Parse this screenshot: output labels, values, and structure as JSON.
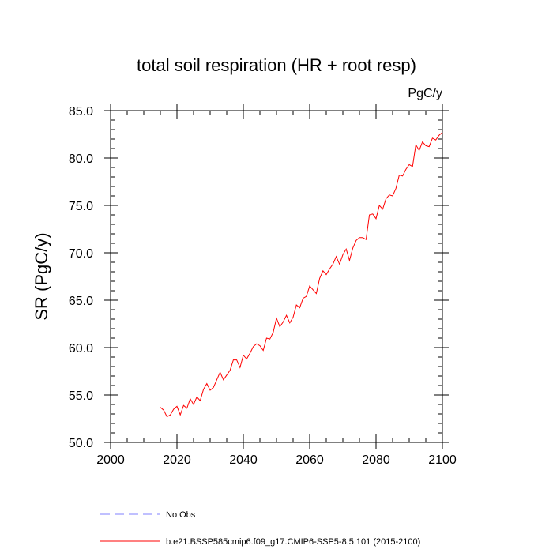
{
  "chart_data": {
    "type": "line",
    "title": "total soil respiration (HR + root resp)",
    "units": "PgC/y",
    "xlabel": "",
    "ylabel": "SR  (PgC/y)",
    "xlim": [
      2000,
      2100
    ],
    "ylim": [
      50,
      85
    ],
    "xticks": [
      2000,
      2020,
      2040,
      2060,
      2080,
      2100
    ],
    "xtick_labels": [
      "2000",
      "2020",
      "2040",
      "2060",
      "2080",
      "2100"
    ],
    "yticks": [
      50,
      55,
      60,
      65,
      70,
      75,
      80,
      85
    ],
    "ytick_labels": [
      "50.0",
      "55.0",
      "60.0",
      "65.0",
      "70.0",
      "75.0",
      "80.0",
      "85.0"
    ],
    "grid": false,
    "legend_position": "bottom",
    "series": [
      {
        "name": "No Obs",
        "color": "#8080ff",
        "style": "dashed",
        "x": [],
        "y": []
      },
      {
        "name": "b.e21.BSSP585cmip6.f09_g17.CMIP6-SSP5-8.5.101 (2015-2100)",
        "color": "#ff0000",
        "style": "solid",
        "x": [
          2015,
          2016,
          2017,
          2018,
          2019,
          2020,
          2021,
          2022,
          2023,
          2024,
          2025,
          2026,
          2027,
          2028,
          2029,
          2030,
          2031,
          2032,
          2033,
          2034,
          2035,
          2036,
          2037,
          2038,
          2039,
          2040,
          2041,
          2042,
          2043,
          2044,
          2045,
          2046,
          2047,
          2048,
          2049,
          2050,
          2051,
          2052,
          2053,
          2054,
          2055,
          2056,
          2057,
          2058,
          2059,
          2060,
          2061,
          2062,
          2063,
          2064,
          2065,
          2066,
          2067,
          2068,
          2069,
          2070,
          2071,
          2072,
          2073,
          2074,
          2075,
          2076,
          2077,
          2078,
          2079,
          2080,
          2081,
          2082,
          2083,
          2084,
          2085,
          2086,
          2087,
          2088,
          2089,
          2090,
          2091,
          2092,
          2093,
          2094,
          2095,
          2096,
          2097,
          2098,
          2099,
          2100
        ],
        "y": [
          53.7,
          53.4,
          52.7,
          52.9,
          53.5,
          53.8,
          52.9,
          53.9,
          53.6,
          54.6,
          54.0,
          54.8,
          54.4,
          55.6,
          56.2,
          55.5,
          55.8,
          56.6,
          57.4,
          56.6,
          57.1,
          57.6,
          58.7,
          58.7,
          57.9,
          59.2,
          58.8,
          59.4,
          60.1,
          60.4,
          60.2,
          59.7,
          61.0,
          60.9,
          61.6,
          63.1,
          62.2,
          62.7,
          63.4,
          62.6,
          63.2,
          64.5,
          64.2,
          65.2,
          65.4,
          66.5,
          66.1,
          65.7,
          67.3,
          68.1,
          67.7,
          68.3,
          68.8,
          69.6,
          68.8,
          69.8,
          70.4,
          69.2,
          70.5,
          71.3,
          71.6,
          71.6,
          71.4,
          74.0,
          74.1,
          73.6,
          75.0,
          74.6,
          75.7,
          76.1,
          76.0,
          76.8,
          78.2,
          78.1,
          78.8,
          79.3,
          79.1,
          81.4,
          80.8,
          81.7,
          81.3,
          81.2,
          82.1,
          81.9,
          82.4,
          82.7
        ]
      }
    ]
  }
}
